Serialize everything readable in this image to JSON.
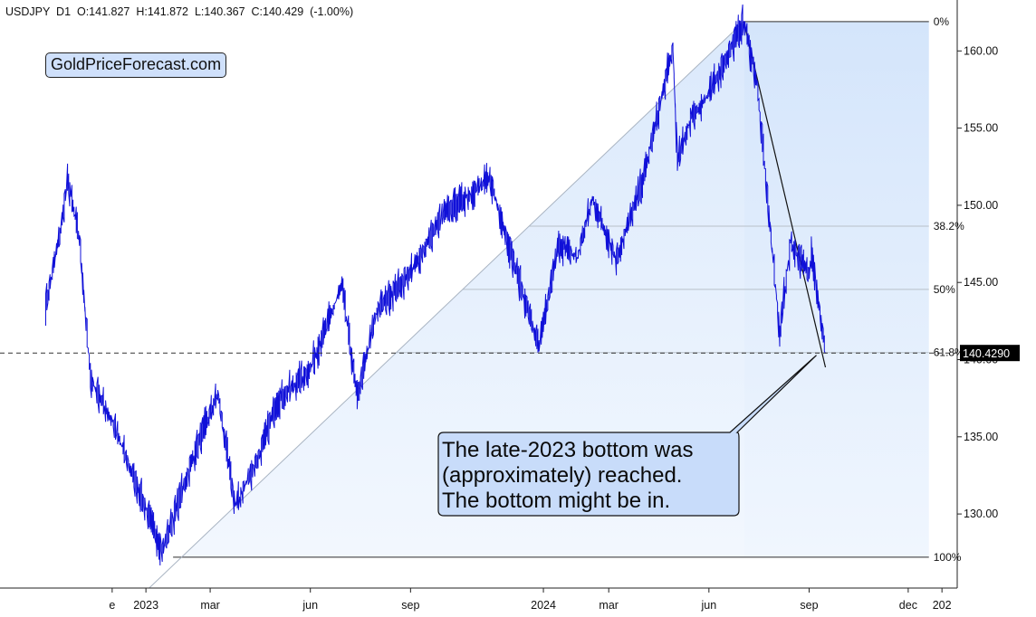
{
  "header": {
    "symbol": "USDJPY",
    "timeframe": "D1",
    "open": "O:141.827",
    "high": "H:141.872",
    "low": "L:140.367",
    "close": "C:140.429",
    "change": "(-1.00%)"
  },
  "watermark": "GoldPriceForecast.com",
  "annotation": {
    "lines": [
      "The late-2023 bottom was",
      "(approximately) reached.",
      "The bottom might be in."
    ]
  },
  "colors": {
    "price": "#1010d8",
    "fib_fill": "#dbe9fb",
    "fib_line": "#8a949e",
    "callout_fill": "#c8dcfa",
    "current_price_label_bg": "#000000"
  },
  "chart_data": {
    "type": "line",
    "series": [
      {
        "points": [
          [
            "2022-10-01",
            143.5
          ],
          [
            "2022-10-15",
            148.5
          ],
          [
            "2022-10-21",
            151.6
          ],
          [
            "2022-11-01",
            147.8
          ],
          [
            "2022-11-11",
            138.8
          ],
          [
            "2022-12-01",
            136.0
          ],
          [
            "2022-12-20",
            132.5
          ],
          [
            "2023-01-16",
            127.6
          ],
          [
            "2023-02-15",
            134.0
          ],
          [
            "2023-03-08",
            137.8
          ],
          [
            "2023-03-24",
            130.5
          ],
          [
            "2023-04-15",
            133.8
          ],
          [
            "2023-05-01",
            137.2
          ],
          [
            "2023-06-01",
            139.4
          ],
          [
            "2023-06-30",
            144.8
          ],
          [
            "2023-07-14",
            137.5
          ],
          [
            "2023-08-01",
            143.2
          ],
          [
            "2023-09-01",
            145.6
          ],
          [
            "2023-10-01",
            149.4
          ],
          [
            "2023-11-13",
            151.7
          ],
          [
            "2023-12-01",
            147.2
          ],
          [
            "2023-12-28",
            140.8
          ],
          [
            "2024-01-15",
            147.5
          ],
          [
            "2024-02-01",
            146.6
          ],
          [
            "2024-02-15",
            150.4
          ],
          [
            "2024-03-08",
            146.5
          ],
          [
            "2024-04-01",
            151.5
          ],
          [
            "2024-04-29",
            160.2
          ],
          [
            "2024-05-03",
            152.8
          ],
          [
            "2024-05-15",
            155.6
          ],
          [
            "2024-06-01",
            157.2
          ],
          [
            "2024-07-03",
            161.9
          ],
          [
            "2024-07-15",
            158.0
          ],
          [
            "2024-08-05",
            141.7
          ],
          [
            "2024-08-15",
            147.6
          ],
          [
            "2024-09-01",
            145.5
          ],
          [
            "2024-09-03",
            147.2
          ],
          [
            "2024-09-16",
            140.4
          ]
        ]
      }
    ],
    "current_price": 140.429,
    "current_price_label": "140.4290",
    "fibonacci": {
      "high": 161.9,
      "low": 127.2,
      "start_date": "2024-07-03",
      "end_date": "2024-12-20",
      "levels": [
        {
          "label": "0%",
          "ratio": 0.0
        },
        {
          "label": "38.2%",
          "ratio": 0.382
        },
        {
          "label": "50%",
          "ratio": 0.5
        },
        {
          "label": "61.8%",
          "ratio": 0.618
        },
        {
          "label": "100%",
          "ratio": 1.0
        }
      ]
    },
    "trend_lines": [
      {
        "from": [
          "2023-01-01",
          125.0
        ],
        "to": [
          "2024-07-03",
          161.9
        ]
      },
      {
        "from": [
          "2024-07-03",
          161.9
        ],
        "to": [
          "2024-09-16",
          139.5
        ]
      }
    ],
    "yaxis": {
      "range": [
        125.2,
        163.3
      ],
      "ticks": [
        "130.00",
        "135.00",
        "140.00",
        "145.00",
        "150.00",
        "155.00",
        "160.00"
      ],
      "side": "right"
    },
    "xaxis": {
      "range": [
        "2022-08-20",
        "2025-01-15"
      ],
      "ticks": [
        {
          "date": "2022-12-01",
          "label": "e"
        },
        {
          "date": "2023-01-01",
          "label": "2023"
        },
        {
          "date": "2023-03-01",
          "label": "mar"
        },
        {
          "date": "2023-06-01",
          "label": "jun"
        },
        {
          "date": "2023-09-01",
          "label": "sep"
        },
        {
          "date": "2024-01-01",
          "label": "2024"
        },
        {
          "date": "2024-03-01",
          "label": "mar"
        },
        {
          "date": "2024-06-01",
          "label": "jun"
        },
        {
          "date": "2024-09-01",
          "label": "sep"
        },
        {
          "date": "2024-12-01",
          "label": "dec"
        },
        {
          "date": "2025-01-01",
          "label": "202"
        }
      ]
    },
    "grid": false
  }
}
